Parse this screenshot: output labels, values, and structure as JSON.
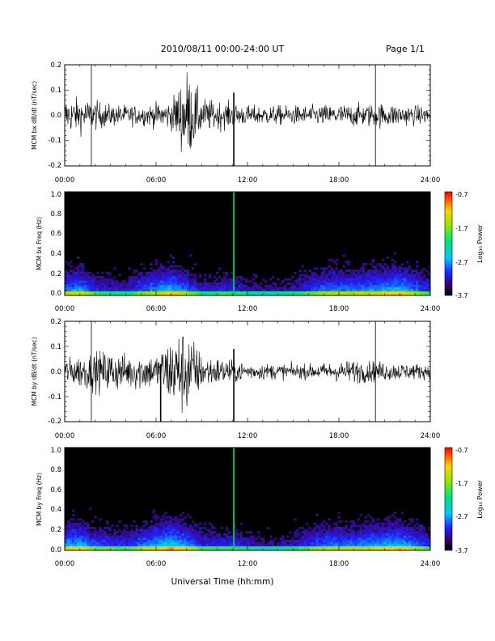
{
  "header": {
    "title": "2010/08/11   00:00-24:00 UT",
    "page": "Page 1/1"
  },
  "xaxis": {
    "title": "Universal Time (hh:mm)",
    "ticks": [
      "00:00",
      "06:00",
      "12:00",
      "18:00",
      "24:00"
    ],
    "range_hours": [
      0,
      24
    ]
  },
  "colorbar": {
    "label": "Log₁₀ Power",
    "ticks": [
      "-0.7",
      "-1.7",
      "-2.7",
      "-3.7"
    ],
    "range": [
      -3.7,
      -0.7
    ]
  },
  "chart_data": [
    {
      "type": "line",
      "ylabel": "MCM bx dB/dt (nT/sec)",
      "ylim": [
        -0.2,
        0.2
      ],
      "yticks": [
        "0.2",
        "0.1",
        "0.0",
        "-0.1",
        "-0.2"
      ],
      "segments": [
        [
          0,
          0.07
        ],
        [
          1,
          0.07
        ],
        [
          2,
          0.06
        ],
        [
          3,
          0.045
        ],
        [
          5,
          0.04
        ],
        [
          7,
          0.06
        ],
        [
          8,
          0.19
        ],
        [
          9,
          0.07
        ],
        [
          11,
          0.05
        ],
        [
          12,
          0.04
        ],
        [
          16,
          0.04
        ],
        [
          18,
          0.045
        ],
        [
          21,
          0.05
        ],
        [
          24,
          0.035
        ]
      ],
      "spikes": [
        {
          "x": 1.75,
          "y0": -0.2,
          "y1": 0.2
        },
        {
          "x": 11.1,
          "y0": -0.2,
          "y1": 0.09
        },
        {
          "x": 20.4,
          "y0": -0.2,
          "y1": 0.2
        }
      ]
    },
    {
      "type": "heatmap",
      "ylabel": "MCM bx Freq (Hz)",
      "ylim": [
        0,
        1
      ],
      "yticks": [
        "1.0",
        "0.8",
        "0.6",
        "0.4",
        "0.2",
        "0.0"
      ],
      "bright_line_hours": 11.1,
      "activity": [
        [
          0,
          0.35
        ],
        [
          1,
          0.4
        ],
        [
          2,
          0.25
        ],
        [
          4,
          0.2
        ],
        [
          5,
          0.3
        ],
        [
          7,
          0.45
        ],
        [
          8,
          0.35
        ],
        [
          9,
          0.2
        ],
        [
          11,
          0.25
        ],
        [
          13,
          0.15
        ],
        [
          15,
          0.2
        ],
        [
          17,
          0.35
        ],
        [
          19,
          0.35
        ],
        [
          22,
          0.45
        ],
        [
          24,
          0.25
        ]
      ]
    },
    {
      "type": "line",
      "ylabel": "MCM by dB/dt (nT/sec)",
      "ylim": [
        -0.2,
        0.2
      ],
      "yticks": [
        "0.2",
        "0.1",
        "0.0",
        "-0.1",
        "-0.2"
      ],
      "segments": [
        [
          0,
          0.05
        ],
        [
          1,
          0.07
        ],
        [
          2,
          0.08
        ],
        [
          3,
          0.09
        ],
        [
          4,
          0.07
        ],
        [
          5,
          0.08
        ],
        [
          6,
          0.07
        ],
        [
          7,
          0.15
        ],
        [
          8,
          0.19
        ],
        [
          9,
          0.07
        ],
        [
          11,
          0.05
        ],
        [
          12,
          0.035
        ],
        [
          16,
          0.03
        ],
        [
          18,
          0.04
        ],
        [
          19,
          0.05
        ],
        [
          21,
          0.04
        ],
        [
          24,
          0.03
        ]
      ],
      "spikes": [
        {
          "x": 1.75,
          "y0": -0.2,
          "y1": 0.2
        },
        {
          "x": 6.3,
          "y0": -0.2,
          "y1": 0.03
        },
        {
          "x": 11.1,
          "y0": -0.2,
          "y1": 0.09
        },
        {
          "x": 20.4,
          "y0": -0.2,
          "y1": 0.2
        }
      ]
    },
    {
      "type": "heatmap",
      "ylabel": "MCM by Freq (Hz)",
      "ylim": [
        0,
        1
      ],
      "yticks": [
        "1.0",
        "0.8",
        "0.6",
        "0.4",
        "0.2",
        "0.0"
      ],
      "bright_line_hours": 11.1,
      "activity": [
        [
          0,
          0.4
        ],
        [
          1,
          0.45
        ],
        [
          2,
          0.3
        ],
        [
          4,
          0.25
        ],
        [
          5,
          0.35
        ],
        [
          7,
          0.5
        ],
        [
          8,
          0.4
        ],
        [
          9,
          0.25
        ],
        [
          11,
          0.25
        ],
        [
          13,
          0.15
        ],
        [
          15,
          0.2
        ],
        [
          17,
          0.35
        ],
        [
          19,
          0.35
        ],
        [
          22,
          0.45
        ],
        [
          24,
          0.25
        ]
      ]
    }
  ]
}
